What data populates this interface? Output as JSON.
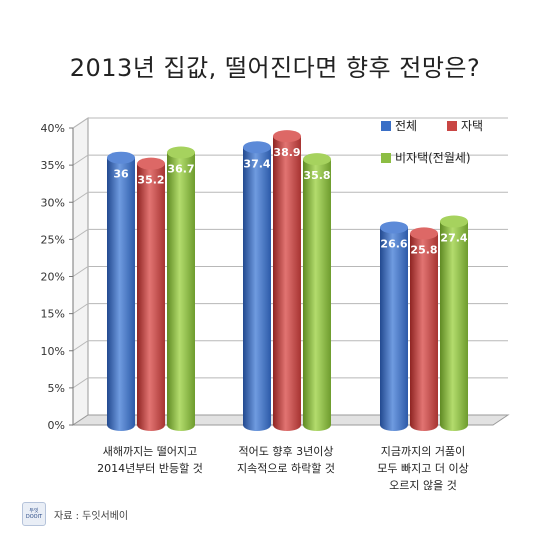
{
  "chart_data": {
    "type": "bar",
    "title": "2013년 집값, 떨어진다면 향후 전망은?",
    "categories": [
      [
        "새해까지는 떨어지고",
        "2014년부터 반등할 것"
      ],
      [
        "적어도 향후 3년이상",
        "지속적으로 하락할 것"
      ],
      [
        "지금까지의 거품이",
        "모두 빠지고 더 이상",
        "오르지 않을 것"
      ]
    ],
    "series": [
      {
        "name": "전체",
        "values": [
          36,
          37.4,
          26.6
        ],
        "labels": [
          "36",
          "37.4",
          "26.6"
        ],
        "color": "#3a6fc6"
      },
      {
        "name": "자택",
        "values": [
          35.2,
          38.9,
          25.8
        ],
        "labels": [
          "35.2",
          "38.9",
          "25.8"
        ],
        "color": "#c94644"
      },
      {
        "name": "비자택(전월세)",
        "values": [
          36.7,
          35.8,
          27.4
        ],
        "labels": [
          "36.7",
          "35.8",
          "27.4"
        ],
        "color": "#8cbd43"
      }
    ],
    "ylim": [
      0,
      40
    ],
    "yticks": [
      "0%",
      "5%",
      "10%",
      "15%",
      "20%",
      "25%",
      "30%",
      "35%",
      "40%"
    ],
    "grid": true,
    "legend": "top-right"
  },
  "logo": {
    "line1": "두잇",
    "line2": "DOOIT"
  },
  "source": "자료 : 두잇서베이"
}
